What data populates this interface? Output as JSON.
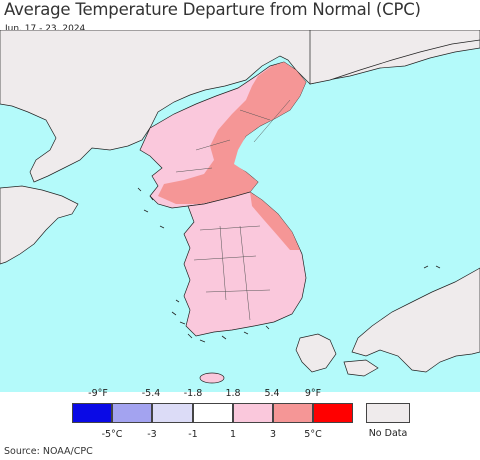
{
  "title": "Average Temperature Departure from Normal (CPC)",
  "subtitle": "Jun. 17 - 23, 2024",
  "legend": {
    "fahrenheit_ticks": [
      "-9°F",
      "-5.4",
      "-1.8",
      "1.8",
      "5.4",
      "9°F"
    ],
    "celsius_ticks": [
      "-5°C",
      "-3",
      "-1",
      "1",
      "3",
      "5°C"
    ],
    "colors": [
      "#0a0ae6",
      "#a3a3f0",
      "#dcdcf7",
      "#ffffff",
      "#fac8dc",
      "#f59696",
      "#ff0000"
    ],
    "no_data_label": "No Data",
    "no_data_color": "#efebec"
  },
  "map_colors": {
    "sea": "#b4fafa",
    "no_data_land": "#efebec",
    "light_warm": "#fac8dc",
    "warm": "#f59696"
  },
  "source": "Source: NOAA/CPC"
}
